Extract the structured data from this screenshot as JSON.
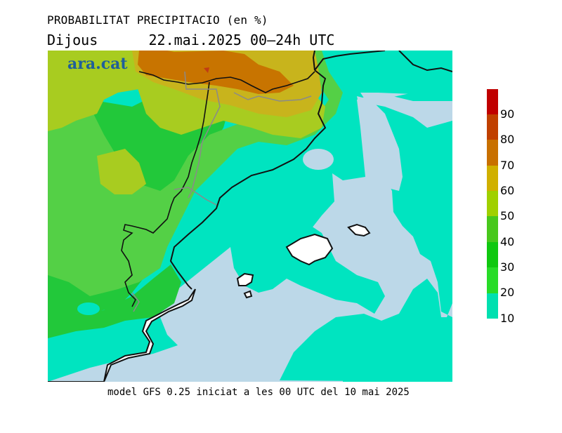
{
  "header": {
    "title": "PROBABILITAT PRECIPITACIO (en %)",
    "subtitle": "Dijous      22.mai.2025 00–24h UTC"
  },
  "footer": {
    "caption": "model GFS 0.25 iniciat a les 00 UTC del 10 mai 2025"
  },
  "logo": {
    "text": "ara.cat"
  },
  "legend": {
    "labels": [
      "90",
      "80",
      "70",
      "60",
      "50",
      "40",
      "30",
      "20",
      "10"
    ],
    "colors": [
      "#c00000",
      "#c04000",
      "#c87000",
      "#d0b000",
      "#a0d000",
      "#48c81c",
      "#10c810",
      "#28dc28",
      "#00e0b0"
    ]
  },
  "colors": {
    "sea_land_low": "#bcd8e8",
    "teal": "#00e4c0",
    "green": "#22c83a",
    "lightgreen": "#54d046",
    "yellowgreen": "#a8cc20",
    "olive": "#c8b41c",
    "orange": "#c87400",
    "red": "#c03c14"
  }
}
